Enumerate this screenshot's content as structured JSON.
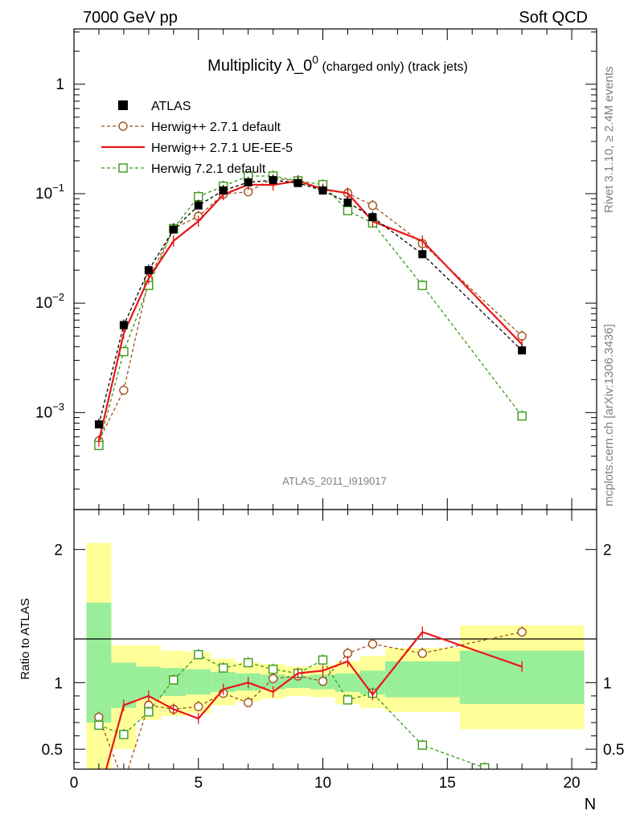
{
  "header": {
    "left": "7000 GeV pp",
    "right": "Soft QCD"
  },
  "side": {
    "rivet": "Rivet 3.1.10, ≥ 2.4M events",
    "mcplots": "mcplots.cern.ch [arXiv:1306.3436]"
  },
  "chart_data": [
    {
      "panel": "main",
      "type": "line",
      "title_main": "Multiplicity λ_0",
      "title_sup": "0",
      "title_rest": " (charged only) (track jets)",
      "analysis_label": "ATLAS_2011_I919017",
      "x_scale": "linear",
      "y_scale": "log",
      "xlim": [
        0,
        21
      ],
      "ylim": [
        0.00013,
        3.2
      ],
      "yticks": [
        {
          "value": 0.001,
          "base": "10",
          "exp": "−3"
        },
        {
          "value": 0.01,
          "base": "10",
          "exp": "−2"
        },
        {
          "value": 0.1,
          "base": "10",
          "exp": "−1"
        },
        {
          "value": 1,
          "base": "1",
          "exp": ""
        }
      ],
      "legend_position": "top-left",
      "series": [
        {
          "name": "ATLAS",
          "style": "data",
          "color": "#000000",
          "x": [
            1,
            2,
            3,
            4,
            5,
            6,
            7,
            8,
            9,
            10,
            11,
            12,
            14,
            18
          ],
          "y": [
            0.00078,
            0.0063,
            0.02,
            0.047,
            0.078,
            0.107,
            0.127,
            0.133,
            0.125,
            0.107,
            0.083,
            0.061,
            0.028,
            0.0037
          ]
        },
        {
          "name": "Herwig++ 2.7.1 default",
          "style": "circle-dashed",
          "color": "#a0521a",
          "x": [
            1,
            2,
            3,
            4,
            5,
            6,
            7,
            8,
            9,
            10,
            11,
            12,
            14,
            18
          ],
          "y": [
            0.00055,
            0.0016,
            0.0165,
            0.048,
            0.062,
            0.099,
            0.104,
            0.138,
            0.131,
            0.108,
            0.101,
            0.078,
            0.035,
            0.005
          ]
        },
        {
          "name": "Herwig++ 2.7.1 UE-EE-5",
          "style": "solid",
          "color": "#e8161a",
          "x": [
            1,
            2,
            3,
            4,
            5,
            6,
            7,
            8,
            9,
            10,
            11,
            12,
            14,
            18
          ],
          "y": [
            0.00055,
            0.0053,
            0.0168,
            0.037,
            0.056,
            0.098,
            0.121,
            0.12,
            0.131,
            0.11,
            0.101,
            0.056,
            0.037,
            0.0042
          ]
        },
        {
          "name": "Herwig 7.2.1 default",
          "style": "square-dashed",
          "color": "#3a9a1a",
          "x": [
            1,
            2,
            3,
            4,
            5,
            6,
            7,
            8,
            9,
            10,
            11,
            12,
            14,
            18
          ],
          "y": [
            0.0005,
            0.0036,
            0.0145,
            0.048,
            0.094,
            0.117,
            0.145,
            0.145,
            0.131,
            0.121,
            0.07,
            0.054,
            0.0145,
            0.00093
          ]
        }
      ]
    },
    {
      "panel": "ratio",
      "type": "line",
      "ylabel": "Ratio to ATLAS",
      "xlabel": "N",
      "xlim": [
        0,
        21
      ],
      "ylim": [
        0.35,
        2.3
      ],
      "xticks": [
        0,
        5,
        10,
        15,
        20
      ],
      "yticks": [
        0.5,
        1,
        2
      ],
      "band_bins": [
        [
          0.5,
          1.5
        ],
        [
          1.5,
          2.5
        ],
        [
          2.5,
          3.5
        ],
        [
          3.5,
          4.5
        ],
        [
          4.5,
          5.5
        ],
        [
          5.5,
          6.5
        ],
        [
          6.5,
          7.5
        ],
        [
          7.5,
          8.5
        ],
        [
          8.5,
          9.5
        ],
        [
          9.5,
          10.5
        ],
        [
          10.5,
          11.5
        ],
        [
          11.5,
          12.5
        ],
        [
          12.5,
          15.5
        ],
        [
          15.5,
          20.5
        ]
      ],
      "band_stat": [
        [
          0.7,
          1.6
        ],
        [
          0.81,
          1.15
        ],
        [
          0.88,
          1.12
        ],
        [
          0.9,
          1.11
        ],
        [
          0.91,
          1.1
        ],
        [
          0.93,
          1.08
        ],
        [
          0.94,
          1.07
        ],
        [
          0.95,
          1.06
        ],
        [
          0.96,
          1.05
        ],
        [
          0.95,
          1.06
        ],
        [
          0.93,
          1.07
        ],
        [
          0.91,
          1.09
        ],
        [
          0.89,
          1.16
        ],
        [
          0.84,
          1.24
        ]
      ],
      "band_total": [
        [
          0.35,
          2.05
        ],
        [
          0.5,
          1.28
        ],
        [
          0.72,
          1.28
        ],
        [
          0.75,
          1.24
        ],
        [
          0.77,
          1.23
        ],
        [
          0.83,
          1.18
        ],
        [
          0.86,
          1.15
        ],
        [
          0.88,
          1.14
        ],
        [
          0.9,
          1.12
        ],
        [
          0.89,
          1.13
        ],
        [
          0.84,
          1.16
        ],
        [
          0.81,
          1.2
        ],
        [
          0.78,
          1.26
        ],
        [
          0.65,
          1.43
        ]
      ],
      "series": [
        {
          "name": "Herwig++ 2.7.1 default",
          "style": "circle-dashed",
          "color": "#a0521a",
          "x": [
            1,
            2,
            3,
            4,
            5,
            6,
            7,
            8,
            9,
            10,
            11,
            12,
            14,
            18
          ],
          "y": [
            0.74,
            0.25,
            0.83,
            0.8,
            0.82,
            0.92,
            0.85,
            1.03,
            1.05,
            1.01,
            1.22,
            1.29,
            1.22,
            1.38
          ]
        },
        {
          "name": "Herwig++ 2.7.1 UE-EE-5",
          "style": "solid",
          "color": "#e8161a",
          "x": [
            1,
            2,
            3,
            4,
            5,
            6,
            7,
            8,
            9,
            10,
            11,
            12,
            14,
            18
          ],
          "y": [
            0.15,
            0.83,
            0.9,
            0.8,
            0.73,
            0.95,
            1.0,
            0.93,
            1.07,
            1.09,
            1.16,
            0.91,
            1.38,
            1.12
          ]
        },
        {
          "name": "Herwig 7.2.1 default",
          "style": "square-dashed",
          "color": "#3a9a1a",
          "x": [
            1,
            2,
            3,
            4,
            5,
            6,
            7,
            8,
            9,
            10,
            11,
            12,
            14,
            16.5
          ],
          "y": [
            0.68,
            0.61,
            0.78,
            1.02,
            1.21,
            1.11,
            1.15,
            1.1,
            1.07,
            1.17,
            0.87,
            0.92,
            0.53,
            0.36
          ]
        }
      ]
    }
  ]
}
